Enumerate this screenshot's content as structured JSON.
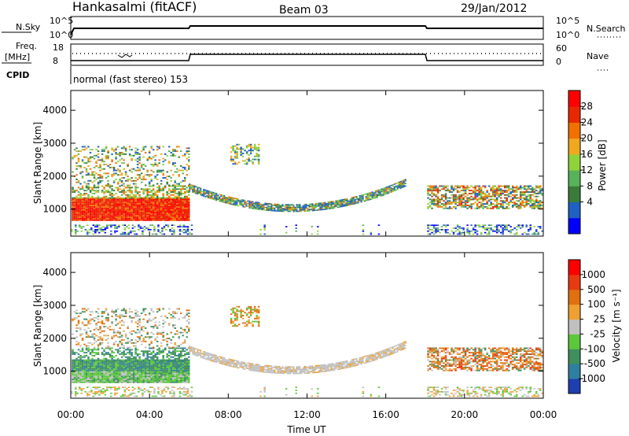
{
  "header": {
    "station": "Hankasalmi (fitACF)",
    "beam": "Beam 03",
    "date": "29/Jan/2012"
  },
  "top_panels": {
    "nsky_label": "N.Sky",
    "nsky_ticks": [
      "10^5",
      "10^0"
    ],
    "nsearch_label": "N.Search",
    "nsearch_ticks": [
      "10^5",
      "10^0"
    ],
    "freq_label_1": "Freq.",
    "freq_label_2": "[MHz]",
    "freq_ticks": [
      "18",
      "8"
    ],
    "nave_label": "Nave",
    "nave_ticks": [
      "60",
      "0"
    ],
    "cpid_label": "CPID",
    "cpid_text": "normal (fast stereo) 153"
  },
  "chart_data": [
    {
      "type": "heatmap",
      "title": "Power",
      "ylabel": "Slant Range [km]",
      "xlabel": "Time UT",
      "xlim": [
        0,
        24
      ],
      "ylim": [
        180,
        4600
      ],
      "y_ticks": [
        "4000",
        "3000",
        "2000",
        "1000"
      ],
      "colorbar_label": "Power [dB]",
      "colorbar_ticks": [
        "28",
        "24",
        "20",
        "16",
        "12",
        "8",
        "4"
      ],
      "colorbar_colors": [
        "#0000ff",
        "#2060c0",
        "#3a7b3a",
        "#58b258",
        "#8fd23a",
        "#f0a81f",
        "#f07000",
        "#e82800",
        "#ff0000"
      ]
    },
    {
      "type": "heatmap",
      "title": "Velocity",
      "ylabel": "Slant Range [km]",
      "xlabel": "Time UT",
      "xlim": [
        0,
        24
      ],
      "ylim": [
        180,
        4600
      ],
      "y_ticks": [
        "4000",
        "3000",
        "2000",
        "1000"
      ],
      "x_ticks": [
        "00:00",
        "04:00",
        "08:00",
        "12:00",
        "16:00",
        "20:00",
        "00:00"
      ],
      "colorbar_label": "Velocity [m s⁻¹]",
      "colorbar_ticks": [
        "1000",
        "500",
        "100",
        "25",
        "-25",
        "-100",
        "-500",
        "-1000"
      ],
      "colorbar_colors": [
        "#1f3fb0",
        "#2f7fa0",
        "#3f8f5f",
        "#5ac83a",
        "#c0c0c0",
        "#f0a030",
        "#e07010",
        "#e83a10",
        "#ff0000"
      ]
    }
  ],
  "x_axis_title": "Time UT"
}
